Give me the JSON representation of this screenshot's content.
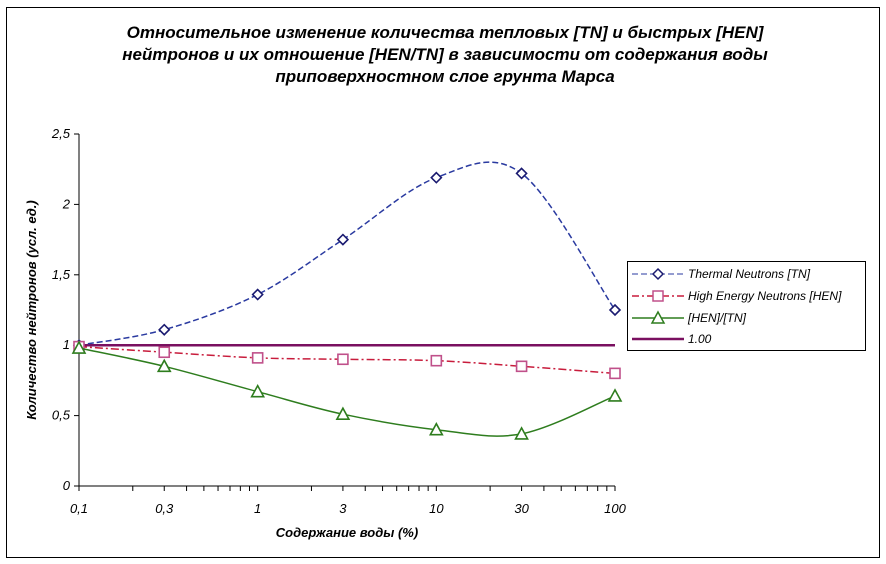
{
  "chart_data": {
    "type": "line",
    "title_lines": [
      "Относительное изменение количества тепловых [TN] и быстрых [HEN]",
      "нейтронов  и их отношение [HEN/TN] в зависимости от содержания воды",
      "приповерхностном слое грунта Марса"
    ],
    "xlabel": "Содержание воды (%)",
    "ylabel": "Количество нейтронов (усл. ед.)",
    "x_scale": "log",
    "x": [
      0.1,
      0.3,
      1,
      3,
      10,
      30,
      100
    ],
    "x_tick_labels": [
      "0,1",
      "0,3",
      "1",
      "3",
      "10",
      "30",
      "100"
    ],
    "y_ticks": [
      0,
      0.5,
      1,
      1.5,
      2,
      2.5
    ],
    "y_tick_labels": [
      "0",
      "0,5",
      "1",
      "1,5",
      "2",
      "2,5"
    ],
    "ylim": [
      0,
      2.5
    ],
    "series": [
      {
        "name": "Thermal Neutrons [TN]",
        "marker": "diamond",
        "line": "dashed",
        "color": "#2a3aa0",
        "marker_color": "#1a1a70",
        "values": [
          1.0,
          1.11,
          1.36,
          1.75,
          2.19,
          2.22,
          1.25
        ]
      },
      {
        "name": "High Energy Neutrons [HEN]",
        "marker": "square",
        "line": "dashdot",
        "color": "#c81c3c",
        "marker_color": "#c0508a",
        "values": [
          0.99,
          0.95,
          0.91,
          0.9,
          0.89,
          0.85,
          0.8
        ]
      },
      {
        "name": "[HEN]/[TN]",
        "marker": "triangle",
        "line": "solid",
        "color": "#2e7d1e",
        "marker_color": "#2e7d1e",
        "values": [
          0.98,
          0.85,
          0.67,
          0.51,
          0.4,
          0.37,
          0.64
        ]
      },
      {
        "name": "1.00",
        "marker": "none",
        "line": "solid",
        "color": "#7a1060",
        "marker_color": "#7a1060",
        "values": [
          1,
          1,
          1,
          1,
          1,
          1,
          1
        ]
      }
    ]
  }
}
